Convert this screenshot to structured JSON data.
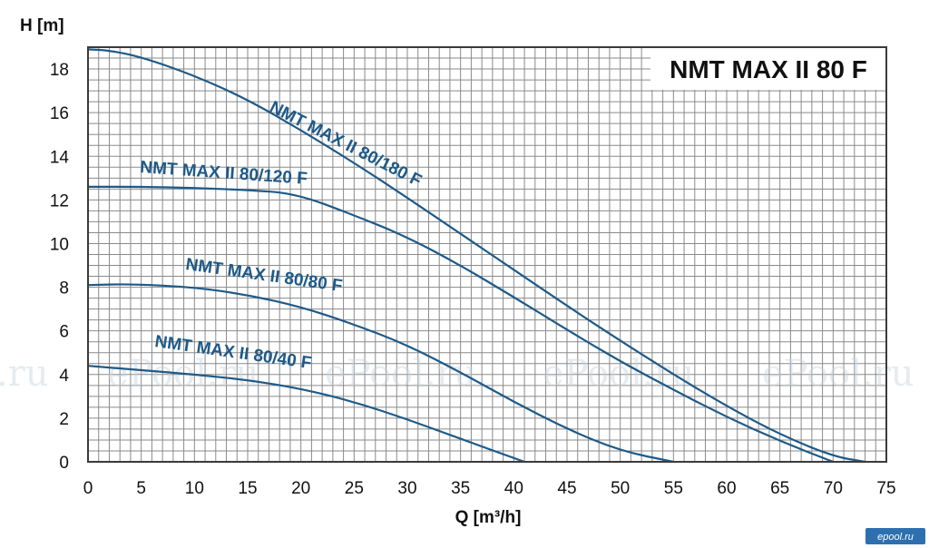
{
  "chart_data": {
    "type": "line",
    "title": "NMT MAX II 80 F",
    "xlabel": "Q [m³/h]",
    "ylabel": "H [m]",
    "xlim": [
      0,
      75
    ],
    "ylim": [
      0,
      19
    ],
    "xticks": [
      "0",
      "5",
      "10",
      "15",
      "20",
      "25",
      "30",
      "35",
      "40",
      "45",
      "50",
      "55",
      "60",
      "65",
      "70",
      "75"
    ],
    "yticks": [
      "0",
      "2",
      "4",
      "6",
      "8",
      "10",
      "12",
      "14",
      "16",
      "18"
    ],
    "grid": true,
    "series": [
      {
        "name": "NMT MAX II 80/180 F",
        "x": [
          0,
          2,
          5,
          10,
          15,
          20,
          25,
          30,
          35,
          40,
          45,
          50,
          55,
          60,
          65,
          70,
          73
        ],
        "y": [
          18.9,
          18.85,
          18.55,
          17.7,
          16.6,
          15.2,
          13.7,
          12.1,
          10.45,
          8.8,
          7.15,
          5.55,
          4.0,
          2.55,
          1.25,
          0.25,
          0
        ]
      },
      {
        "name": "NMT MAX II 80/120 F",
        "x": [
          0,
          5,
          10,
          15,
          19.5,
          25,
          30,
          35,
          40,
          45,
          50,
          55,
          60,
          65,
          70
        ],
        "y": [
          12.6,
          12.6,
          12.55,
          12.45,
          12.3,
          11.3,
          10.3,
          9.0,
          7.55,
          6.05,
          4.6,
          3.3,
          2.05,
          0.95,
          0
        ]
      },
      {
        "name": "NMT MAX II 80/80 F",
        "x": [
          0,
          4,
          10,
          15,
          20,
          25,
          30,
          35,
          40,
          45,
          50,
          55
        ],
        "y": [
          8.1,
          8.15,
          8.0,
          7.65,
          7.1,
          6.3,
          5.35,
          4.1,
          2.75,
          1.5,
          0.5,
          0
        ]
      },
      {
        "name": "NMT MAX II 80/40 F",
        "x": [
          0,
          5,
          10,
          15,
          20,
          25,
          30,
          35,
          41
        ],
        "y": [
          4.4,
          4.2,
          4.0,
          3.75,
          3.35,
          2.75,
          1.95,
          1.05,
          0
        ]
      }
    ],
    "curve_labels": [
      "NMT MAX II 80/180 F",
      "NMT MAX II 80/120 F",
      "NMT MAX II 80/80 F",
      "NMT MAX II 80/40 F"
    ],
    "watermarks": [
      ".ru",
      "ePool.ru",
      "ePool.ru",
      "ePool.ru",
      "ePool.ru"
    ],
    "corner_logo": "epool.ru",
    "colors": {
      "curve": "#1e5a88",
      "curve_label": "#1e5a88",
      "grid": "#8a8a8a",
      "frame": "#3a3a3a",
      "corner_logo_bg": "#2e6fb0"
    }
  }
}
